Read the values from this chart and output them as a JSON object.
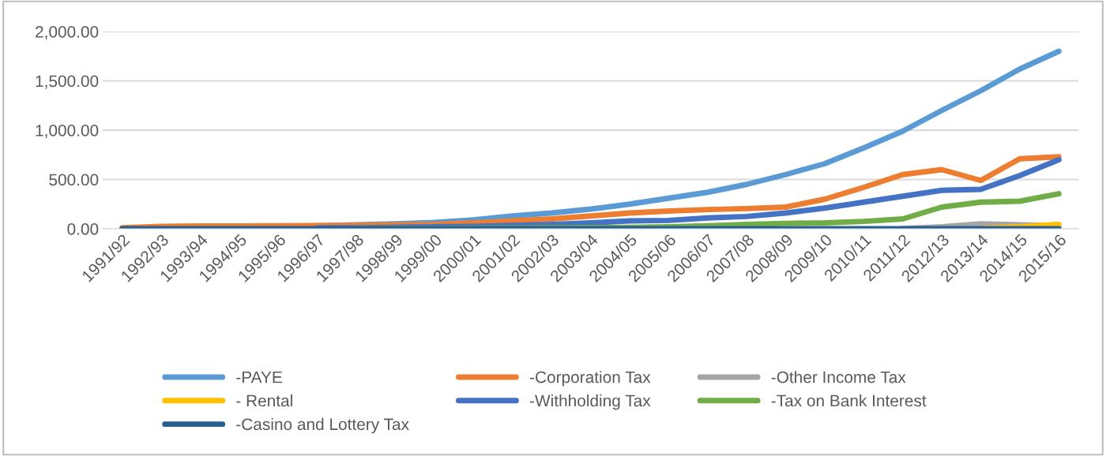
{
  "chart_data": {
    "type": "line",
    "categories": [
      "1991/92",
      "1992/93",
      "1993/94",
      "1994/95",
      "1995/96",
      "1996/97",
      "1997/98",
      "1998/99",
      "1999/00",
      "2000/01",
      "2001/02",
      "2002/03",
      "2003/04",
      "2004/05",
      "2005/06",
      "2006/07",
      "2007/08",
      "2008/09",
      "2009/10",
      "2010/11",
      "2011/12",
      "2012/13",
      "2013/14",
      "2014/15",
      "2015/16"
    ],
    "series": [
      {
        "name": "-PAYE",
        "color": "#5b9bd5",
        "values": [
          5,
          10,
          15,
          18,
          22,
          30,
          40,
          50,
          65,
          90,
          130,
          160,
          200,
          250,
          310,
          370,
          450,
          550,
          660,
          820,
          990,
          1200,
          1400,
          1620,
          1800
        ]
      },
      {
        "name": "-Corporation Tax",
        "color": "#ed7d31",
        "values": [
          10,
          25,
          28,
          28,
          30,
          32,
          35,
          40,
          45,
          60,
          80,
          100,
          130,
          160,
          180,
          195,
          205,
          220,
          300,
          420,
          550,
          600,
          490,
          710,
          730
        ]
      },
      {
        "name": "-Other Income Tax",
        "color": "#a5a5a5",
        "values": [
          null,
          null,
          null,
          null,
          null,
          null,
          null,
          null,
          null,
          null,
          null,
          null,
          null,
          null,
          null,
          null,
          null,
          null,
          null,
          null,
          3,
          20,
          50,
          40,
          30
        ]
      },
      {
        "name": "- Rental",
        "color": "#ffc000",
        "values": [
          null,
          null,
          null,
          null,
          null,
          null,
          null,
          null,
          null,
          null,
          null,
          null,
          null,
          null,
          null,
          null,
          null,
          null,
          null,
          null,
          null,
          null,
          5,
          20,
          45
        ]
      },
      {
        "name": "-Withholding Tax",
        "color": "#4472c4",
        "values": [
          null,
          null,
          null,
          null,
          null,
          8,
          10,
          15,
          20,
          25,
          35,
          45,
          60,
          80,
          85,
          110,
          125,
          160,
          210,
          270,
          330,
          390,
          400,
          540,
          700
        ]
      },
      {
        "name": "-Tax on Bank Interest",
        "color": "#70ad47",
        "values": [
          null,
          null,
          null,
          null,
          null,
          null,
          3,
          4,
          5,
          6,
          8,
          10,
          12,
          15,
          20,
          30,
          45,
          55,
          60,
          75,
          100,
          220,
          270,
          280,
          355
        ]
      },
      {
        "name": "-Casino and Lottery Tax",
        "color": "#255e91",
        "values": [
          0,
          0,
          0,
          0,
          0,
          0,
          0,
          0,
          0,
          0,
          0,
          0,
          0,
          0,
          0,
          0,
          0,
          0,
          0,
          0,
          0,
          0,
          0,
          0,
          0
        ]
      }
    ],
    "ylim": [
      0,
      2000
    ],
    "yticks": [
      {
        "value": 0,
        "label": "0.00"
      },
      {
        "value": 500,
        "label": "500.00"
      },
      {
        "value": 1000,
        "label": "1,000.00"
      },
      {
        "value": 1500,
        "label": "1,500.00"
      },
      {
        "value": 2000,
        "label": "2,000.00"
      }
    ],
    "grid": "y",
    "legend": "bottom",
    "marker": "none",
    "line_style": "solid"
  }
}
